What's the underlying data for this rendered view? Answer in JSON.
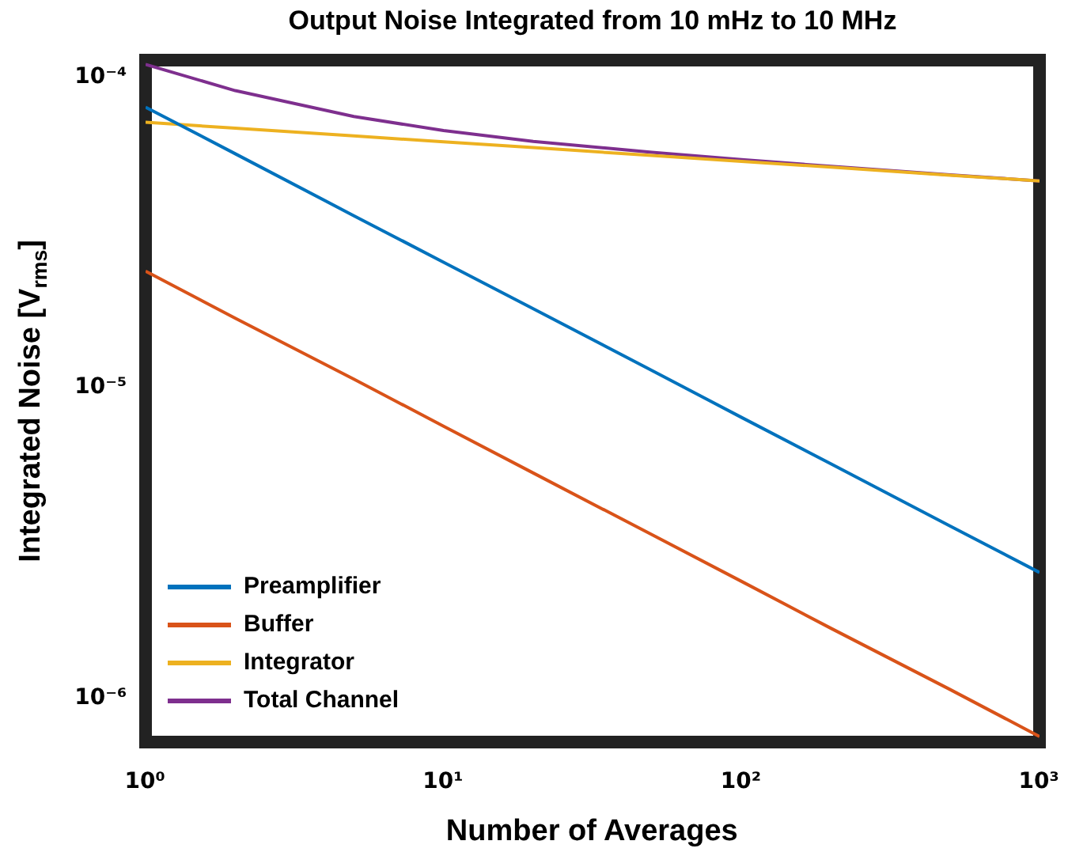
{
  "chart_data": {
    "type": "line",
    "title": "Output Noise Integrated from 10 mHz to 10 MHz",
    "xlabel": "Number of Averages",
    "ylabel": "Integrated Noise [V$_{rms}$]",
    "x": [
      1,
      2,
      5,
      10,
      20,
      50,
      100,
      200,
      500,
      1000
    ],
    "series": [
      {
        "name": "Preamplifier",
        "color": "#0072bd",
        "values": [
          7.9e-05,
          5.59e-05,
          3.53e-05,
          2.5e-05,
          1.77e-05,
          1.12e-05,
          7.9e-06,
          5.59e-06,
          3.53e-06,
          2.5e-06
        ]
      },
      {
        "name": "Buffer",
        "color": "#d95319",
        "values": [
          2.34e-05,
          1.65e-05,
          1.05e-05,
          7.4e-06,
          5.23e-06,
          3.31e-06,
          2.34e-06,
          1.65e-06,
          1.05e-06,
          7.4e-07
        ]
      },
      {
        "name": "Integrator",
        "color": "#edb120",
        "values": [
          7.06e-05,
          6.76e-05,
          6.38e-05,
          6.11e-05,
          5.85e-05,
          5.52e-05,
          5.28e-05,
          5.06e-05,
          4.77e-05,
          4.57e-05
        ]
      },
      {
        "name": "Total Channel",
        "color": "#7e2f8e",
        "values": [
          0.0001085,
          8.93e-05,
          7.37e-05,
          6.64e-05,
          6.13e-05,
          5.65e-05,
          5.35e-05,
          5.09e-05,
          4.78e-05,
          4.57e-05
        ]
      }
    ],
    "log": "xy",
    "xlim": [
      1,
      1000
    ],
    "ylim": [
      7.1e-07,
      0.000112
    ],
    "xticks": [
      {
        "value": 1,
        "label": "10⁰"
      },
      {
        "value": 10,
        "label": "10¹"
      },
      {
        "value": 100,
        "label": "10²"
      },
      {
        "value": 1000,
        "label": "10³"
      }
    ],
    "yticks": [
      {
        "value": 1e-06,
        "label": "10⁻⁶"
      },
      {
        "value": 1e-05,
        "label": "10⁻⁵"
      },
      {
        "value": 0.0001,
        "label": "10⁻⁴"
      }
    ],
    "grid": false,
    "legend": "bottom left",
    "marker": "none",
    "line_style": "solid"
  }
}
